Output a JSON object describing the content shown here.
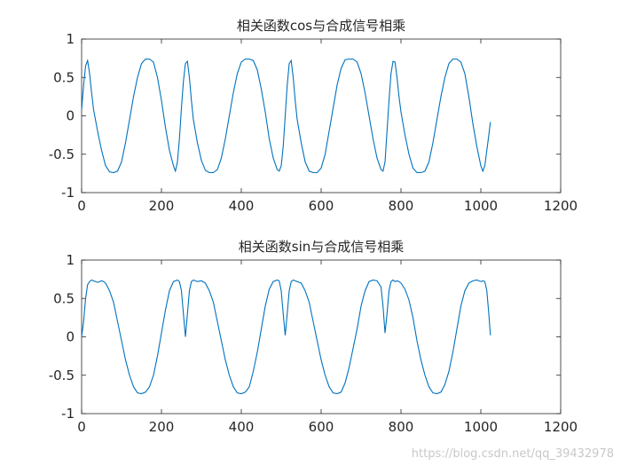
{
  "watermark": "https://blog.csdn.net/qq_39432978",
  "chart_data": [
    {
      "type": "line",
      "title": "相关函数cos与合成信号相乘",
      "xlim": [
        0,
        1200
      ],
      "ylim": [
        -1,
        1
      ],
      "xticks": [
        0,
        200,
        400,
        600,
        800,
        1000,
        1200
      ],
      "yticks": [
        -1,
        -0.5,
        0,
        0.5,
        1
      ],
      "ytick_labels": [
        "-1",
        "-0.5",
        "0",
        "0.5",
        "1"
      ],
      "grid": false,
      "line_color": "#0072bd",
      "series": [
        {
          "x": [
            0,
            5,
            10,
            15,
            20,
            25,
            30,
            40,
            50,
            60,
            70,
            80,
            90,
            100,
            110,
            120,
            130,
            140,
            150,
            160,
            170,
            180,
            190,
            200,
            210,
            220,
            230,
            235,
            240,
            245,
            250,
            255,
            260,
            265,
            270,
            275,
            280,
            290,
            300,
            310,
            320,
            330,
            340,
            350,
            360,
            370,
            380,
            390,
            400,
            410,
            420,
            430,
            440,
            450,
            460,
            470,
            480,
            490,
            495,
            500,
            505,
            510,
            515,
            520,
            525,
            530,
            535,
            540,
            550,
            560,
            570,
            580,
            590,
            600,
            610,
            620,
            630,
            640,
            650,
            660,
            670,
            680,
            690,
            700,
            710,
            720,
            730,
            740,
            750,
            755,
            760,
            765,
            770,
            775,
            780,
            785,
            790,
            795,
            800,
            810,
            820,
            830,
            840,
            850,
            860,
            870,
            880,
            890,
            900,
            910,
            920,
            930,
            940,
            950,
            960,
            970,
            980,
            990,
            1000,
            1005,
            1010,
            1015,
            1020,
            1024
          ],
          "y": [
            0.08,
            0.4,
            0.65,
            0.72,
            0.55,
            0.3,
            0.08,
            -0.2,
            -0.45,
            -0.65,
            -0.73,
            -0.74,
            -0.72,
            -0.6,
            -0.35,
            -0.05,
            0.25,
            0.5,
            0.68,
            0.74,
            0.74,
            0.7,
            0.5,
            0.2,
            -0.15,
            -0.45,
            -0.65,
            -0.72,
            -0.6,
            -0.3,
            0.1,
            0.45,
            0.68,
            0.71,
            0.5,
            0.2,
            -0.05,
            -0.35,
            -0.58,
            -0.71,
            -0.74,
            -0.74,
            -0.7,
            -0.55,
            -0.3,
            0.0,
            0.3,
            0.55,
            0.7,
            0.74,
            0.74,
            0.72,
            0.6,
            0.35,
            0.05,
            -0.3,
            -0.55,
            -0.7,
            -0.72,
            -0.65,
            -0.4,
            0.0,
            0.4,
            0.68,
            0.72,
            0.5,
            0.2,
            -0.05,
            -0.35,
            -0.6,
            -0.72,
            -0.74,
            -0.74,
            -0.68,
            -0.5,
            -0.2,
            0.1,
            0.4,
            0.62,
            0.73,
            0.74,
            0.74,
            0.7,
            0.55,
            0.3,
            0.0,
            -0.3,
            -0.55,
            -0.7,
            -0.72,
            -0.6,
            -0.2,
            0.2,
            0.55,
            0.71,
            0.7,
            0.5,
            0.25,
            0.05,
            -0.25,
            -0.5,
            -0.68,
            -0.74,
            -0.74,
            -0.72,
            -0.6,
            -0.35,
            -0.05,
            0.25,
            0.5,
            0.68,
            0.74,
            0.74,
            0.7,
            0.55,
            0.25,
            -0.1,
            -0.4,
            -0.65,
            -0.72,
            -0.65,
            -0.45,
            -0.25,
            -0.08
          ]
        }
      ]
    },
    {
      "type": "line",
      "title": "相关函数sin与合成信号相乘",
      "xlim": [
        0,
        1200
      ],
      "ylim": [
        -1,
        1
      ],
      "xticks": [
        0,
        200,
        400,
        600,
        800,
        1000,
        1200
      ],
      "yticks": [
        -1,
        -0.5,
        0,
        0.5,
        1
      ],
      "ytick_labels": [
        "-1",
        "-0.5",
        "0",
        "0.5",
        "1"
      ],
      "grid": false,
      "line_color": "#0072bd",
      "series": [
        {
          "x": [
            0,
            5,
            10,
            15,
            20,
            25,
            30,
            35,
            40,
            45,
            50,
            55,
            60,
            70,
            80,
            90,
            100,
            110,
            120,
            130,
            140,
            150,
            160,
            170,
            180,
            190,
            200,
            210,
            220,
            230,
            240,
            245,
            250,
            255,
            260,
            265,
            270,
            275,
            280,
            290,
            300,
            310,
            320,
            330,
            340,
            350,
            360,
            370,
            380,
            390,
            400,
            410,
            420,
            430,
            440,
            450,
            460,
            470,
            480,
            490,
            495,
            500,
            505,
            510,
            515,
            520,
            525,
            530,
            535,
            540,
            550,
            560,
            570,
            580,
            590,
            600,
            610,
            620,
            630,
            640,
            650,
            660,
            670,
            680,
            690,
            700,
            710,
            720,
            730,
            740,
            750,
            755,
            760,
            765,
            770,
            775,
            780,
            785,
            790,
            795,
            800,
            810,
            820,
            830,
            840,
            850,
            860,
            870,
            880,
            890,
            900,
            910,
            920,
            930,
            940,
            950,
            960,
            970,
            980,
            990,
            1000,
            1005,
            1010,
            1015,
            1020,
            1024
          ],
          "y": [
            0.0,
            0.2,
            0.5,
            0.68,
            0.72,
            0.74,
            0.73,
            0.72,
            0.71,
            0.72,
            0.73,
            0.72,
            0.7,
            0.6,
            0.45,
            0.2,
            -0.05,
            -0.3,
            -0.5,
            -0.65,
            -0.73,
            -0.74,
            -0.72,
            -0.65,
            -0.5,
            -0.25,
            0.05,
            0.35,
            0.6,
            0.72,
            0.74,
            0.72,
            0.6,
            0.3,
            0.0,
            0.3,
            0.6,
            0.72,
            0.74,
            0.72,
            0.73,
            0.7,
            0.6,
            0.45,
            0.2,
            -0.05,
            -0.3,
            -0.5,
            -0.65,
            -0.73,
            -0.74,
            -0.72,
            -0.65,
            -0.45,
            -0.2,
            0.1,
            0.4,
            0.62,
            0.72,
            0.74,
            0.73,
            0.6,
            0.3,
            0.02,
            0.3,
            0.6,
            0.72,
            0.74,
            0.73,
            0.72,
            0.7,
            0.6,
            0.45,
            0.2,
            -0.05,
            -0.3,
            -0.5,
            -0.65,
            -0.73,
            -0.74,
            -0.72,
            -0.6,
            -0.4,
            -0.15,
            0.1,
            0.4,
            0.6,
            0.72,
            0.74,
            0.73,
            0.65,
            0.4,
            0.05,
            0.3,
            0.6,
            0.72,
            0.74,
            0.72,
            0.73,
            0.72,
            0.7,
            0.62,
            0.48,
            0.25,
            -0.05,
            -0.3,
            -0.5,
            -0.65,
            -0.73,
            -0.74,
            -0.72,
            -0.62,
            -0.45,
            -0.2,
            0.1,
            0.4,
            0.6,
            0.7,
            0.73,
            0.74,
            0.72,
            0.73,
            0.72,
            0.6,
            0.3,
            0.02
          ]
        }
      ]
    }
  ]
}
